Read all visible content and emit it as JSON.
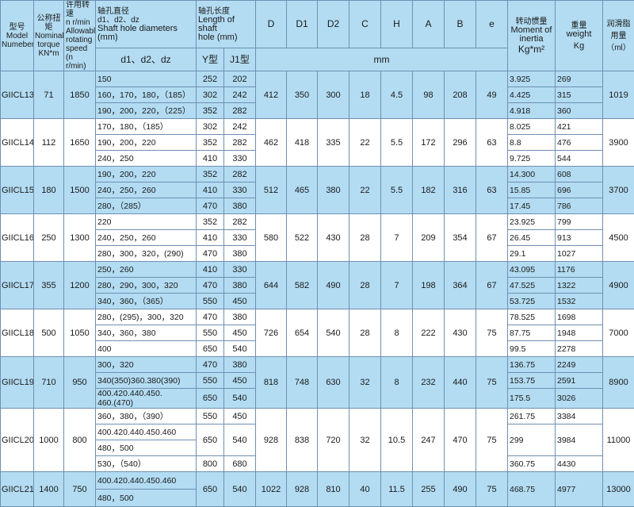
{
  "header": {
    "model": {
      "zh": "型号",
      "en1": "Model",
      "en2": "Numeber"
    },
    "torque": {
      "zh": "公称扭矩",
      "en1": "Nominal",
      "en2": "torque",
      "unit": "KN*m"
    },
    "speed": {
      "zh": "许用转速",
      "l1": "n r/min",
      "l2": "Allowable",
      "l3": "rotating",
      "l4": "speed",
      "l5": "(n r/min)"
    },
    "shaft_dia": {
      "zh": "轴孔直径",
      "sym": "d1、d2、dz",
      "en": "Shaft hole diameters (mm)",
      "sub_header": "d1、d2、dz"
    },
    "shaft_len": {
      "zh": "轴孔长度",
      "en1": "Length of shaft",
      "en2": "hole (mm)",
      "y": "Y型",
      "j": "J1型"
    },
    "dims": [
      "D",
      "D1",
      "D2",
      "C",
      "H",
      "A",
      "B",
      "e"
    ],
    "dims_unit": "mm",
    "inertia": {
      "zh": "转动惯量",
      "en1": "Moment of",
      "en2": "inertia",
      "unit": "Kg*m²"
    },
    "weight": {
      "zh": "重量",
      "en": "weight",
      "unit": "Kg"
    },
    "lube": {
      "zh1": "润滑脂",
      "zh2": "用量",
      "unit": "（ml）"
    }
  },
  "models": [
    {
      "model": "GIICL13",
      "torque": "71",
      "speed": "1850",
      "D": "412",
      "D1": "350",
      "D2": "300",
      "C": "18",
      "H": "4.5",
      "A": "98",
      "B": "208",
      "e": "49",
      "lube": "1019",
      "groups": [
        {
          "d": [
            "150"
          ],
          "y": "252",
          "j": "202",
          "inertia": "3.925",
          "weight": "269"
        },
        {
          "d": [
            "160，170，180，（185）"
          ],
          "y": "302",
          "j": "242",
          "inertia": "4.425",
          "weight": "315"
        },
        {
          "d": [
            "190，200，220，（225）"
          ],
          "y": "352",
          "j": "282",
          "inertia": "4.918",
          "weight": "360"
        }
      ]
    },
    {
      "model": "GIICL14",
      "torque": "112",
      "speed": "1650",
      "D": "462",
      "D1": "418",
      "D2": "335",
      "C": "22",
      "H": "5.5",
      "A": "172",
      "B": "296",
      "e": "63",
      "lube": "3900",
      "groups": [
        {
          "d": [
            "170，180，（185）"
          ],
          "y": "302",
          "j": "242",
          "inertia": "8.025",
          "weight": "421"
        },
        {
          "d": [
            "190，200，220"
          ],
          "y": "352",
          "j": "282",
          "inertia": "8.8",
          "weight": "476"
        },
        {
          "d": [
            "240，250"
          ],
          "y": "410",
          "j": "330",
          "inertia": "9.725",
          "weight": "544"
        }
      ]
    },
    {
      "model": "GIICL15",
      "torque": "180",
      "speed": "1500",
      "D": "512",
      "D1": "465",
      "D2": "380",
      "C": "22",
      "H": "5.5",
      "A": "182",
      "B": "316",
      "e": "63",
      "lube": "3700",
      "groups": [
        {
          "d": [
            "190，200，220"
          ],
          "y": "352",
          "j": "282",
          "inertia": "14.300",
          "weight": "608"
        },
        {
          "d": [
            "240，250，260"
          ],
          "y": "410",
          "j": "330",
          "inertia": "15.85",
          "weight": "696"
        },
        {
          "d": [
            "280，（285）"
          ],
          "y": "470",
          "j": "380",
          "inertia": "17.45",
          "weight": "786"
        }
      ]
    },
    {
      "model": "GIICL16",
      "torque": "250",
      "speed": "1300",
      "D": "580",
      "D1": "522",
      "D2": "430",
      "C": "28",
      "H": "7",
      "A": "209",
      "B": "354",
      "e": "67",
      "lube": "4500",
      "groups": [
        {
          "d": [
            "220"
          ],
          "y": "352",
          "j": "282",
          "inertia": "23.925",
          "weight": "799"
        },
        {
          "d": [
            "240，250，260"
          ],
          "y": "410",
          "j": "330",
          "inertia": "26.45",
          "weight": "913"
        },
        {
          "d": [
            "280，300，320，(290)"
          ],
          "y": "470",
          "j": "380",
          "inertia": "29.1",
          "weight": "1027"
        }
      ]
    },
    {
      "model": "GIICL17",
      "torque": "355",
      "speed": "1200",
      "D": "644",
      "D1": "582",
      "D2": "490",
      "C": "28",
      "H": "7",
      "A": "198",
      "B": "364",
      "e": "67",
      "lube": "4900",
      "groups": [
        {
          "d": [
            "250，260"
          ],
          "y": "410",
          "j": "330",
          "inertia": "43.095",
          "weight": "1176"
        },
        {
          "d": [
            "280，290，300，320"
          ],
          "y": "470",
          "j": "380",
          "inertia": "47.525",
          "weight": "1322"
        },
        {
          "d": [
            "340，360，（365）"
          ],
          "y": "550",
          "j": "450",
          "inertia": "53.725",
          "weight": "1532"
        }
      ]
    },
    {
      "model": "GIICL18",
      "torque": "500",
      "speed": "1050",
      "D": "726",
      "D1": "654",
      "D2": "540",
      "C": "28",
      "H": "8",
      "A": "222",
      "B": "430",
      "e": "75",
      "lube": "7000",
      "groups": [
        {
          "d": [
            "280，(295)，300，320"
          ],
          "y": "470",
          "j": "380",
          "inertia": "78.525",
          "weight": "1698"
        },
        {
          "d": [
            "340，360，380"
          ],
          "y": "550",
          "j": "450",
          "inertia": "87.75",
          "weight": "1948"
        },
        {
          "d": [
            "400"
          ],
          "y": "650",
          "j": "540",
          "inertia": "99.5",
          "weight": "2278"
        }
      ]
    },
    {
      "model": "GIICL19",
      "torque": "710",
      "speed": "950",
      "D": "818",
      "D1": "748",
      "D2": "630",
      "C": "32",
      "H": "8",
      "A": "232",
      "B": "440",
      "e": "75",
      "lube": "8900",
      "groups": [
        {
          "d": [
            "300，320"
          ],
          "y": "470",
          "j": "380",
          "inertia": "136.75",
          "weight": "2249"
        },
        {
          "d": [
            "340(350)360.380(390)"
          ],
          "y": "550",
          "j": "450",
          "inertia": "153.75",
          "weight": "2591"
        },
        {
          "d": [
            "400.420.440.450.\n460.(470)"
          ],
          "y": "650",
          "j": "540",
          "inertia": "175.5",
          "weight": "3026"
        }
      ]
    },
    {
      "model": "GIICL20",
      "torque": "1000",
      "speed": "800",
      "D": "928",
      "D1": "838",
      "D2": "720",
      "C": "32",
      "H": "10.5",
      "A": "247",
      "B": "470",
      "e": "75",
      "lube": "11000",
      "groups": [
        {
          "d": [
            "360，380，（390）"
          ],
          "y": "550",
          "j": "450",
          "inertia": "261.75",
          "weight": "3384"
        },
        {
          "d": [
            "400.420.440.450.460",
            "480，500"
          ],
          "y": "650",
          "j": "540",
          "inertia": "299",
          "weight": "3984"
        },
        {
          "d": [
            "530，（540）"
          ],
          "y": "800",
          "j": "680",
          "inertia": "360.75",
          "weight": "4430"
        }
      ]
    },
    {
      "model": "GIICL21",
      "torque": "1400",
      "speed": "750",
      "D": "1022",
      "D1": "928",
      "D2": "810",
      "C": "40",
      "H": "11.5",
      "A": "255",
      "B": "490",
      "e": "75",
      "lube": "13000",
      "groups": [
        {
          "d": [
            "400.420.440.450.460",
            "480，500"
          ],
          "y": "650",
          "j": "540",
          "inertia": "468.75",
          "weight": "4977"
        }
      ]
    }
  ],
  "colors": {
    "band_blue": "#b3dcf2",
    "band_white": "#ffffff",
    "border": "#6f8fb3"
  }
}
